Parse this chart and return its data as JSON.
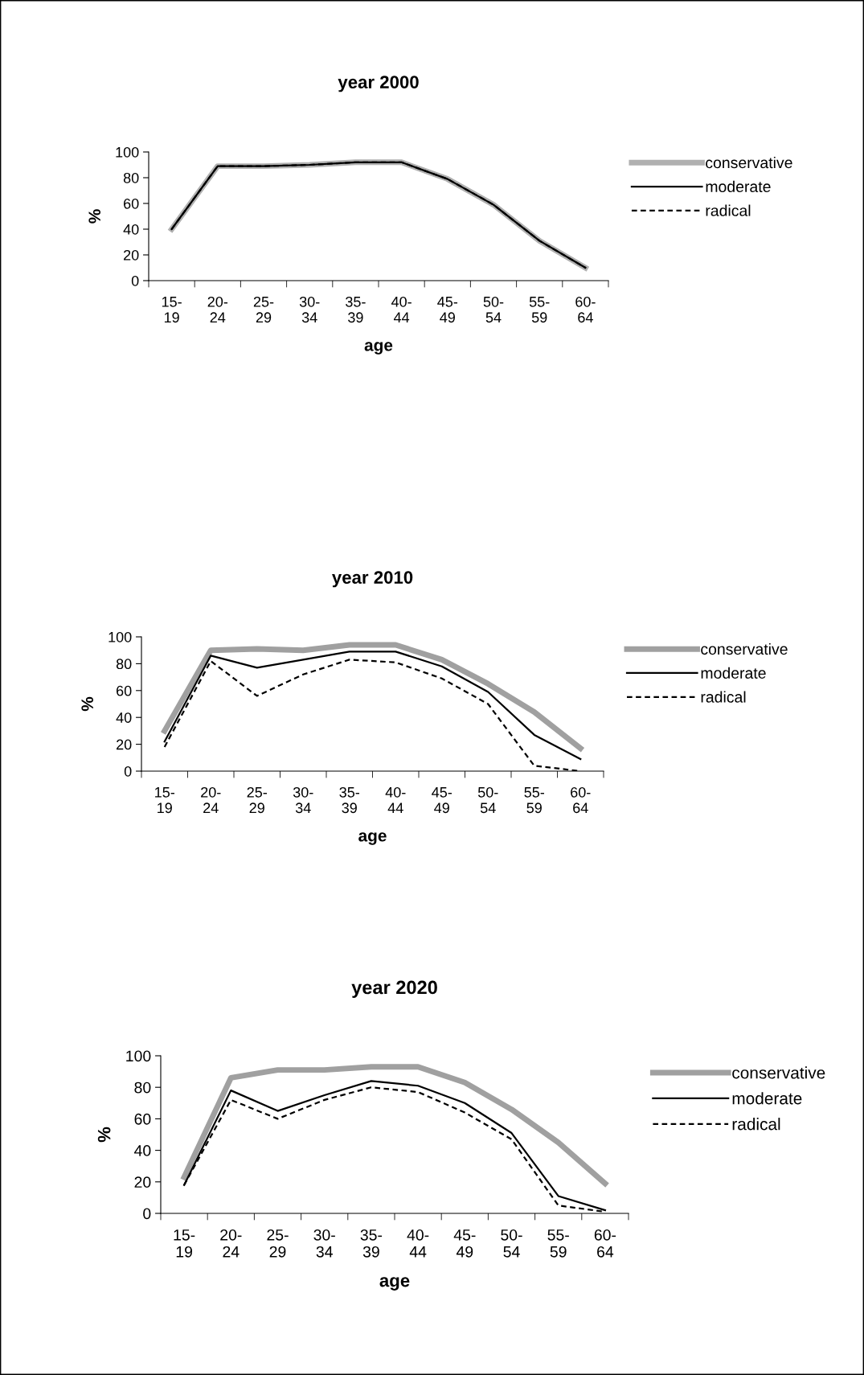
{
  "chart_data": [
    {
      "type": "line",
      "title": "year 2000",
      "xlabel": "age",
      "ylabel": "%",
      "categories": [
        "15-\n19",
        "20-\n24",
        "25-\n29",
        "30-\n34",
        "35-\n39",
        "40-\n44",
        "45-\n49",
        "50-\n54",
        "55-\n59",
        "60-\n64"
      ],
      "ylim": [
        0,
        100
      ],
      "yticks": [
        0,
        20,
        40,
        60,
        80,
        100
      ],
      "legend": "right",
      "grid": false,
      "marker": "none",
      "series": [
        {
          "name": "conservative",
          "color": "#b0b0b0",
          "line_style": "solid",
          "values": [
            40,
            89,
            89,
            90,
            92,
            92,
            79,
            59,
            31,
            10
          ]
        },
        {
          "name": "moderate",
          "color": "#000000",
          "line_style": "solid",
          "values": [
            40,
            89,
            89,
            90,
            92,
            92,
            79,
            59,
            31,
            10
          ]
        },
        {
          "name": "radical",
          "color": "#000000",
          "line_style": "dashed",
          "values": [
            40,
            89,
            89,
            90,
            92,
            92,
            79,
            59,
            31,
            10
          ]
        }
      ]
    },
    {
      "type": "line",
      "title": "year 2010",
      "xlabel": "age",
      "ylabel": "%",
      "categories": [
        "15-\n19",
        "20-\n24",
        "25-\n29",
        "30-\n34",
        "35-\n39",
        "40-\n44",
        "45-\n49",
        "50-\n54",
        "55-\n59",
        "60-\n64"
      ],
      "ylim": [
        0,
        100
      ],
      "yticks": [
        0,
        20,
        40,
        60,
        80,
        100
      ],
      "legend": "right",
      "grid": false,
      "marker": "none",
      "series": [
        {
          "name": "conservative",
          "color": "#a0a0a0",
          "line_style": "solid",
          "values": [
            30,
            90,
            91,
            90,
            94,
            94,
            83,
            65,
            44,
            17
          ]
        },
        {
          "name": "moderate",
          "color": "#000000",
          "line_style": "solid",
          "values": [
            22,
            86,
            77,
            83,
            89,
            89,
            78,
            59,
            27,
            9
          ]
        },
        {
          "name": "radical",
          "color": "#000000",
          "line_style": "dashed",
          "values": [
            18,
            82,
            56,
            72,
            83,
            81,
            69,
            50,
            4,
            0
          ]
        }
      ]
    },
    {
      "type": "line",
      "title": "year 2020",
      "xlabel": "age",
      "ylabel": "%",
      "categories": [
        "15-\n19",
        "20-\n24",
        "25-\n29",
        "30-\n34",
        "35-\n39",
        "40-\n44",
        "45-\n49",
        "50-\n54",
        "55-\n59",
        "60-\n64"
      ],
      "ylim": [
        0,
        100
      ],
      "yticks": [
        0,
        20,
        40,
        60,
        80,
        100
      ],
      "legend": "right",
      "grid": false,
      "marker": "none",
      "series": [
        {
          "name": "conservative",
          "color": "#a0a0a0",
          "line_style": "solid",
          "values": [
            23,
            86,
            91,
            91,
            93,
            93,
            83,
            66,
            45,
            19
          ]
        },
        {
          "name": "moderate",
          "color": "#000000",
          "line_style": "solid",
          "values": [
            18,
            78,
            65,
            75,
            84,
            81,
            70,
            51,
            11,
            2
          ]
        },
        {
          "name": "radical",
          "color": "#000000",
          "line_style": "dashed",
          "values": [
            18,
            72,
            60,
            72,
            80,
            77,
            64,
            47,
            5,
            1
          ]
        }
      ]
    }
  ]
}
